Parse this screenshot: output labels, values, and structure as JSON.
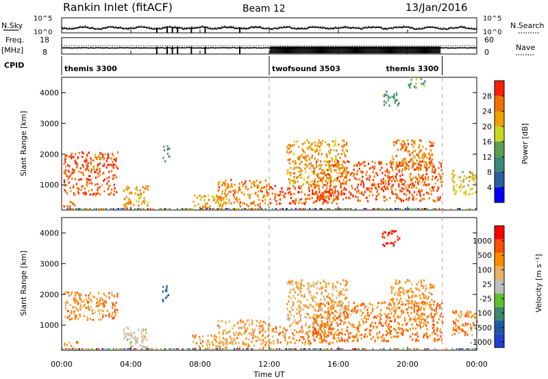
{
  "header": {
    "title": "Rankin Inlet (fitACF)",
    "beam": "Beam 12",
    "date": "13/Jan/2016"
  },
  "noise_panel": {
    "left_label": "N.Sky",
    "right_label": "N.Search",
    "left_ticks": [
      "10^5",
      "10^0"
    ],
    "right_ticks": [
      "10^5",
      "10^0"
    ]
  },
  "freq_panel": {
    "left_label": "Freq.",
    "left_unit": "[MHz]",
    "left_ticks": [
      "18",
      "8"
    ],
    "right_label": "Nave",
    "right_ticks": [
      "60",
      "0"
    ]
  },
  "cpid_panel": {
    "label": "CPID",
    "segments": [
      {
        "name": "themis 3300",
        "start_h": 0,
        "end_h": 12
      },
      {
        "name": "twofsound 3503",
        "start_h": 12,
        "end_h": 22
      },
      {
        "name": "themis 3300",
        "start_h": 22,
        "end_h": 24
      }
    ]
  },
  "colors": {
    "power": [
      "#0000ff",
      "#2a5fa0",
      "#3a8a7a",
      "#5aa050",
      "#c8d820",
      "#f0a000",
      "#f07000",
      "#ff2000"
    ],
    "velocity": [
      "#ff0000",
      "#ff5000",
      "#ff8c00",
      "#e8b060",
      "#bfbfbf",
      "#60c030",
      "#3c8a6a",
      "#1f5aa0",
      "#2040d0"
    ]
  },
  "chart_data": [
    {
      "type": "heatmap",
      "quantity": "Power",
      "ylabel": "Slant Range [km]",
      "ylim": [
        180,
        4500
      ],
      "yticks": [
        "1000",
        "2000",
        "3000",
        "4000"
      ],
      "xlim": [
        0,
        24
      ],
      "colorbar": {
        "label": "Power [dB]",
        "range": [
          0,
          32
        ],
        "ticks": [
          "4",
          "8",
          "12",
          "16",
          "20",
          "24",
          "28"
        ]
      },
      "scatter_regions": [
        {
          "t": [
            0.1,
            3.2
          ],
          "r": [
            700,
            2100
          ],
          "level": 0.92
        },
        {
          "t": [
            0.1,
            0.8
          ],
          "r": [
            250,
            500
          ],
          "level": 0.9
        },
        {
          "t": [
            3.5,
            5.0
          ],
          "r": [
            300,
            1000
          ],
          "level": 0.75
        },
        {
          "t": [
            5.8,
            6.2
          ],
          "r": [
            1800,
            2300
          ],
          "level": 0.35
        },
        {
          "t": [
            7.5,
            9.5
          ],
          "r": [
            250,
            700
          ],
          "level": 0.7
        },
        {
          "t": [
            9.0,
            12.0
          ],
          "r": [
            300,
            1200
          ],
          "level": 0.8
        },
        {
          "t": [
            12.0,
            16.0
          ],
          "r": [
            400,
            1000
          ],
          "level": 0.93
        },
        {
          "t": [
            13.0,
            16.5
          ],
          "r": [
            1000,
            2500
          ],
          "level": 0.75
        },
        {
          "t": [
            14.5,
            22.0
          ],
          "r": [
            500,
            1800
          ],
          "level": 0.9
        },
        {
          "t": [
            19.0,
            21.5
          ],
          "r": [
            1500,
            2500
          ],
          "level": 0.8
        },
        {
          "t": [
            18.5,
            19.5
          ],
          "r": [
            3600,
            4100
          ],
          "level": 0.35
        },
        {
          "t": [
            20.0,
            21.0
          ],
          "r": [
            4200,
            4500
          ],
          "level": 0.4
        },
        {
          "t": [
            22.5,
            24.0
          ],
          "r": [
            700,
            1500
          ],
          "level": 0.6
        }
      ]
    },
    {
      "type": "heatmap",
      "quantity": "Velocity",
      "ylabel": "Slant Range [km]",
      "xlabel": "Time UT",
      "ylim": [
        180,
        4500
      ],
      "yticks": [
        "1000",
        "2000",
        "3000",
        "4000"
      ],
      "xlim": [
        0,
        24
      ],
      "xticks": [
        "00:00",
        "04:00",
        "08:00",
        "12:00",
        "16:00",
        "20:00",
        "00:00"
      ],
      "colorbar": {
        "label": "Velocity [m s⁻¹]",
        "ticks": [
          "1000",
          "500",
          "100",
          "25",
          "-25",
          "-100",
          "-500",
          "-1000"
        ]
      },
      "scatter_regions": [
        {
          "t": [
            0.1,
            3.2
          ],
          "r": [
            1200,
            2100
          ],
          "level": 0.25
        },
        {
          "t": [
            0.1,
            1.0
          ],
          "r": [
            250,
            500
          ],
          "level": 0.3
        },
        {
          "t": [
            3.5,
            5.0
          ],
          "r": [
            300,
            1000
          ],
          "level": 0.45
        },
        {
          "t": [
            5.8,
            6.2
          ],
          "r": [
            1800,
            2300
          ],
          "level": 0.85
        },
        {
          "t": [
            7.5,
            9.5
          ],
          "r": [
            250,
            700
          ],
          "level": 0.3
        },
        {
          "t": [
            9.0,
            12.0
          ],
          "r": [
            300,
            1200
          ],
          "level": 0.3
        },
        {
          "t": [
            12.0,
            16.0
          ],
          "r": [
            400,
            1000
          ],
          "level": 0.25
        },
        {
          "t": [
            13.0,
            16.5
          ],
          "r": [
            1000,
            2500
          ],
          "level": 0.35
        },
        {
          "t": [
            14.5,
            22.0
          ],
          "r": [
            500,
            1800
          ],
          "level": 0.2
        },
        {
          "t": [
            19.0,
            21.5
          ],
          "r": [
            1500,
            2500
          ],
          "level": 0.3
        },
        {
          "t": [
            18.5,
            19.5
          ],
          "r": [
            3600,
            4100
          ],
          "level": 0.05
        },
        {
          "t": [
            22.5,
            24.0
          ],
          "r": [
            700,
            1500
          ],
          "level": 0.25
        }
      ]
    }
  ]
}
